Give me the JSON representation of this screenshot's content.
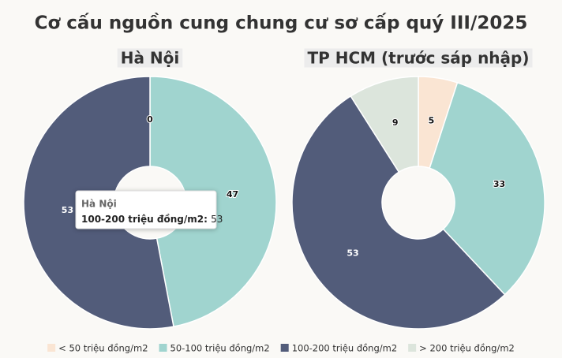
{
  "title": "Cơ cấu nguồn cung chung cư sơ cấp quý III/2025",
  "legend": {
    "categories": [
      "< 50 triệu đồng/m2",
      "50-100 triệu đồng/m2",
      "100-200 triệu đồng/m2",
      "> 200 triệu đồng/m2"
    ],
    "colors": [
      "#fae5d3",
      "#a0d4cf",
      "#525c7a",
      "#dce5dc"
    ]
  },
  "chart_data": [
    {
      "type": "donut",
      "title": "Hà Nội",
      "values": [
        0,
        47,
        53,
        null
      ]
    },
    {
      "type": "donut",
      "title": "TP HCM (trước sáp nhập)",
      "values": [
        5,
        33,
        53,
        9
      ]
    }
  ]
}
